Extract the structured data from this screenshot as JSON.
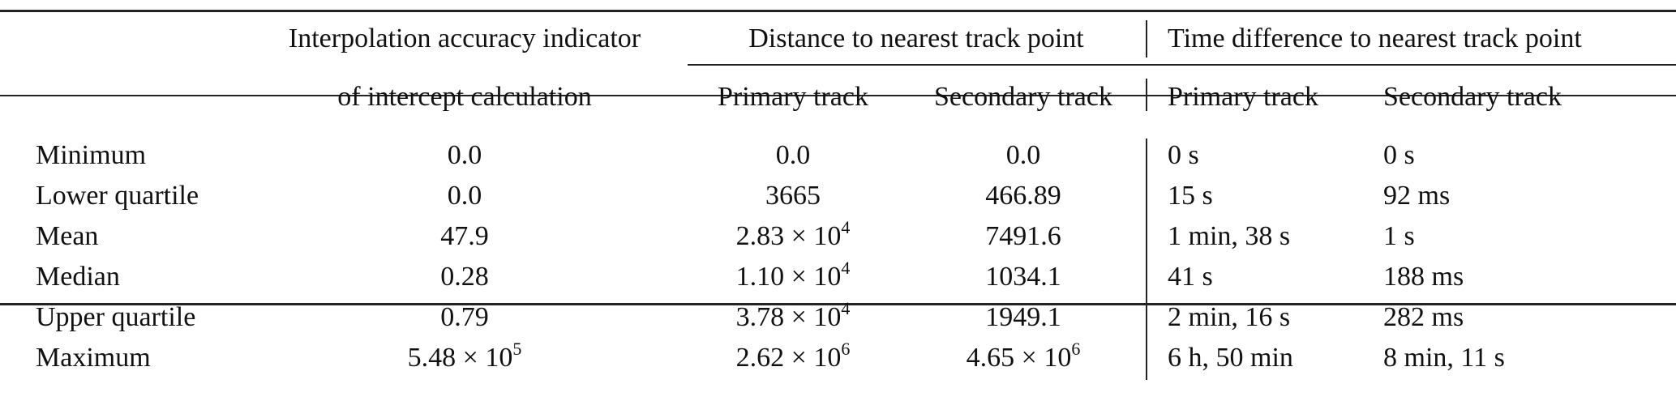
{
  "table": {
    "header": {
      "col1_line1": "Interpolation accuracy indicator",
      "col1_line2": "of intercept calculation",
      "group_distance": "Distance to nearest track point",
      "group_time": "Time difference to nearest track point",
      "sub_primary": "Primary track",
      "sub_secondary": "Secondary track"
    },
    "rows": [
      {
        "label": "Minimum",
        "interp": "0.0",
        "interp_exp": "",
        "dist_primary": "0.0",
        "dist_primary_exp": "",
        "dist_secondary": "0.0",
        "dist_secondary_exp": "",
        "time_primary": "0 s",
        "time_secondary": "0 s"
      },
      {
        "label": "Lower quartile",
        "interp": "0.0",
        "interp_exp": "",
        "dist_primary": "3665",
        "dist_primary_exp": "",
        "dist_secondary": "466.89",
        "dist_secondary_exp": "",
        "time_primary": "15 s",
        "time_secondary": "92 ms"
      },
      {
        "label": "Mean",
        "interp": "47.9",
        "interp_exp": "",
        "dist_primary": "2.83 × 10",
        "dist_primary_exp": "4",
        "dist_secondary": "7491.6",
        "dist_secondary_exp": "",
        "time_primary": "1 min, 38 s",
        "time_secondary": "1 s"
      },
      {
        "label": "Median",
        "interp": "0.28",
        "interp_exp": "",
        "dist_primary": "1.10 × 10",
        "dist_primary_exp": "4",
        "dist_secondary": "1034.1",
        "dist_secondary_exp": "",
        "time_primary": "41 s",
        "time_secondary": "188 ms"
      },
      {
        "label": "Upper quartile",
        "interp": "0.79",
        "interp_exp": "",
        "dist_primary": "3.78 × 10",
        "dist_primary_exp": "4",
        "dist_secondary": "1949.1",
        "dist_secondary_exp": "",
        "time_primary": "2 min, 16 s",
        "time_secondary": "282 ms"
      },
      {
        "label": "Maximum",
        "interp": "5.48 × 10",
        "interp_exp": "5",
        "dist_primary": "2.62 × 10",
        "dist_primary_exp": "6",
        "dist_secondary": "4.65 × 10",
        "dist_secondary_exp": "6",
        "time_primary": "6 h, 50 min",
        "time_secondary": "8 min, 11 s"
      }
    ]
  }
}
